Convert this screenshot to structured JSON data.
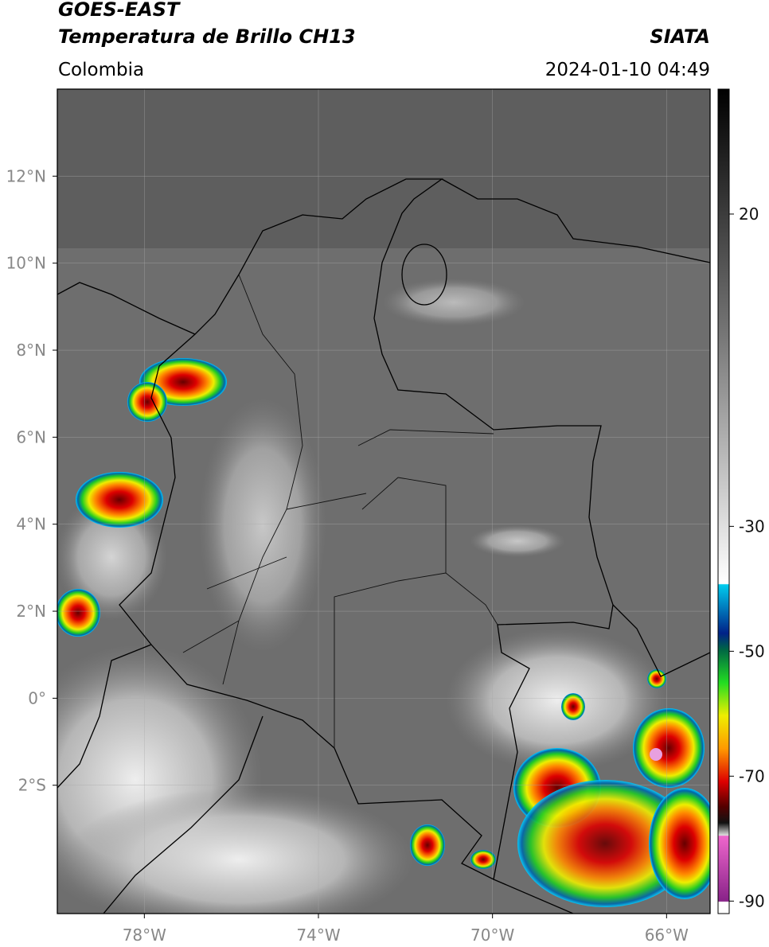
{
  "header": {
    "title": "GOES-EAST",
    "subtitle": "Temperatura de Brillo CH13",
    "region": "Colombia",
    "source": "SIATA",
    "timestamp": "2024-01-10 04:49"
  },
  "map": {
    "xlim": [
      -80,
      -65
    ],
    "ylim": [
      -4.95,
      14
    ],
    "xticks": [
      {
        "value": -78,
        "label": "78°W"
      },
      {
        "value": -74,
        "label": "74°W"
      },
      {
        "value": -70,
        "label": "70°W"
      },
      {
        "value": -66,
        "label": "66°W"
      }
    ],
    "yticks": [
      {
        "value": 12,
        "label": "12°N"
      },
      {
        "value": 10,
        "label": "10°N"
      },
      {
        "value": 8,
        "label": "8°N"
      },
      {
        "value": 6,
        "label": "6°N"
      },
      {
        "value": 4,
        "label": "4°N"
      },
      {
        "value": 2,
        "label": "2°N"
      },
      {
        "value": 0,
        "label": "0°"
      },
      {
        "value": -2,
        "label": "2°S"
      }
    ],
    "grid": true
  },
  "colorbar": {
    "lim": [
      -92,
      40
    ],
    "ticks": [
      20,
      -30,
      -50,
      -70,
      -90
    ]
  }
}
